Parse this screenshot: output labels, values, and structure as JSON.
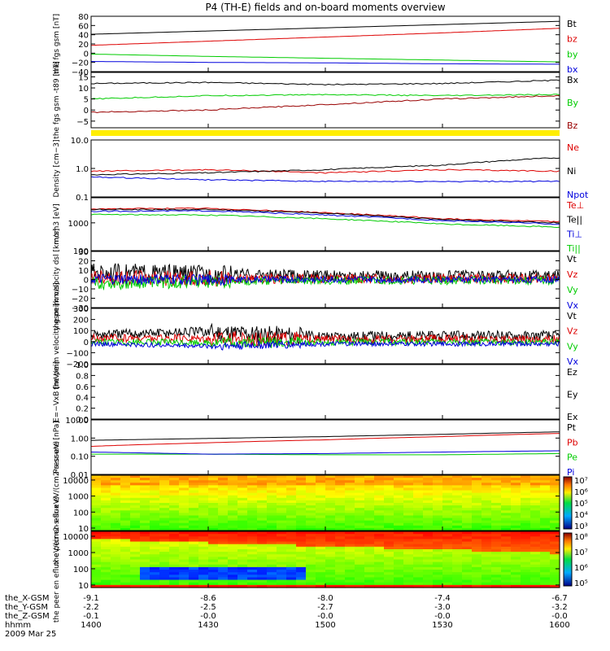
{
  "title": "P4 (TH-E) fields and on-board moments overview",
  "colors": {
    "black": "#000000",
    "red": "#dd0000",
    "green": "#00cc00",
    "blue": "#0000dd",
    "darkred": "#990000",
    "yellow": "#ffee00"
  },
  "bottom_axis": {
    "rows": [
      {
        "label": "the_X-GSM",
        "values": [
          "-9.1",
          "-8.6",
          "-8.0",
          "-7.4",
          "-6.7"
        ]
      },
      {
        "label": "the_Y-GSM",
        "values": [
          "-2.2",
          "-2.5",
          "-2.7",
          "-3.0",
          "-3.2"
        ]
      },
      {
        "label": "the_Z-GSM",
        "values": [
          "-0.1",
          "-0.0",
          "-0.0",
          "-0.0",
          "-0.0"
        ]
      },
      {
        "label": "hhmm",
        "values": [
          "1400",
          "1430",
          "1500",
          "1530",
          "1600"
        ]
      }
    ],
    "date": "2009 Mar 25"
  },
  "chart_data": [
    {
      "type": "line",
      "ylabel": "the fgs gsm [nT]",
      "ylim": [
        -40,
        80
      ],
      "ticks": [
        "80",
        "60",
        "40",
        "20",
        "0",
        "−20",
        "−40"
      ],
      "x": [
        1400,
        1430,
        1500,
        1530,
        1600
      ],
      "series": [
        {
          "name": "Bt",
          "color": "#000000",
          "values": [
            41,
            48,
            55,
            62,
            69
          ]
        },
        {
          "name": "bz",
          "color": "#dd0000",
          "values": [
            17,
            26,
            35,
            44,
            54
          ]
        },
        {
          "name": "by",
          "color": "#00cc00",
          "values": [
            -2,
            -7,
            -11,
            -15,
            -19
          ]
        },
        {
          "name": "bx",
          "color": "#0000dd",
          "values": [
            -18,
            -20,
            -21,
            -23,
            -24
          ]
        }
      ]
    },
    {
      "type": "line",
      "ylabel": "the fgs gsm -t89 [nT]",
      "ylim": [
        -8,
        17
      ],
      "ticks": [
        "15",
        "10",
        "5",
        "0",
        "−5"
      ],
      "x": [
        1400,
        1430,
        1500,
        1530,
        1600
      ],
      "series": [
        {
          "name": "Bx",
          "color": "#000000",
          "values": [
            12,
            12.5,
            11.5,
            12,
            13.5
          ]
        },
        {
          "name": "By",
          "color": "#00cc00",
          "values": [
            5,
            6.5,
            7,
            6.5,
            7
          ]
        },
        {
          "name": "Bz",
          "color": "#990000",
          "values": [
            -1,
            0,
            2.5,
            5,
            6.5
          ]
        }
      ]
    },
    {
      "type": "line",
      "ylabel": "Density [cm−3]",
      "scale": "log",
      "ylim": [
        0.1,
        10
      ],
      "ticks": [
        "10.0",
        "1.0",
        "0.1"
      ],
      "x": [
        1400,
        1430,
        1500,
        1530,
        1600
      ],
      "series": [
        {
          "name": "Ne",
          "color": "#dd0000",
          "values": [
            0.8,
            0.9,
            0.7,
            0.9,
            0.8
          ]
        },
        {
          "name": "Ni",
          "color": "#000000",
          "values": [
            0.6,
            0.7,
            0.9,
            1.3,
            2.4
          ]
        },
        {
          "name": "Npot",
          "color": "#0000dd",
          "values": [
            0.5,
            0.4,
            0.35,
            0.35,
            0.35
          ]
        }
      ]
    },
    {
      "type": "line",
      "ylabel": "mom3 [eV]",
      "scale": "log",
      "ylim": [
        100,
        8000
      ],
      "ticks": [
        "1000",
        "100"
      ],
      "x": [
        1400,
        1430,
        1500,
        1530,
        1600
      ],
      "series": [
        {
          "name": "Te⊥",
          "color": "#dd0000",
          "values": [
            3200,
            3300,
            2300,
            1400,
            1100
          ]
        },
        {
          "name": "Te||",
          "color": "#000000",
          "values": [
            3000,
            3000,
            2200,
            1300,
            1000
          ]
        },
        {
          "name": "Ti⊥",
          "color": "#0000dd",
          "values": [
            2600,
            2700,
            1900,
            1200,
            900
          ]
        },
        {
          "name": "Ti||",
          "color": "#00cc00",
          "values": [
            2000,
            1900,
            1400,
            900,
            700
          ]
        }
      ]
    },
    {
      "type": "line",
      "ylabel": "the peim velocity dsl [km/s]",
      "ylim": [
        -30,
        30
      ],
      "ticks": [
        "30",
        "20",
        "10",
        "0",
        "−10",
        "−20",
        "−30"
      ],
      "x": [
        1400,
        1430,
        1500,
        1530,
        1600
      ],
      "series": [
        {
          "name": "Vt",
          "color": "#000000",
          "values": [
            8,
            6,
            4,
            4,
            4
          ]
        },
        {
          "name": "Vz",
          "color": "#dd0000",
          "values": [
            2,
            1,
            1,
            1,
            1
          ]
        },
        {
          "name": "Vy",
          "color": "#00cc00",
          "values": [
            -4,
            -2,
            -1,
            -1,
            -1
          ]
        },
        {
          "name": "Vx",
          "color": "#0000dd",
          "values": [
            0,
            0,
            0,
            0,
            0
          ]
        }
      ]
    },
    {
      "type": "line",
      "ylabel": "the peim velocity gsm [km/s]",
      "ylim": [
        -200,
        300
      ],
      "ticks": [
        "300",
        "200",
        "100",
        "0",
        "−100",
        "−200"
      ],
      "x": [
        1400,
        1430,
        1500,
        1530,
        1600
      ],
      "series": [
        {
          "name": "Vt",
          "color": "#000000",
          "values": [
            60,
            90,
            50,
            50,
            55
          ]
        },
        {
          "name": "Vz",
          "color": "#dd0000",
          "values": [
            30,
            30,
            20,
            25,
            20
          ]
        },
        {
          "name": "Vy",
          "color": "#00cc00",
          "values": [
            0,
            -10,
            -5,
            -5,
            -5
          ]
        },
        {
          "name": "Vx",
          "color": "#0000dd",
          "values": [
            -20,
            -40,
            -20,
            -20,
            -20
          ]
        }
      ]
    },
    {
      "type": "line",
      "ylabel": "E=−VxB [mV/m]",
      "ylim": [
        0,
        1
      ],
      "ticks": [
        "1.0",
        "0.8",
        "0.6",
        "0.4",
        "0.2",
        "0.0"
      ],
      "x": [],
      "series": [
        {
          "name": "Ez",
          "values": []
        },
        {
          "name": "Ey",
          "values": []
        },
        {
          "name": "Ex",
          "values": []
        }
      ]
    },
    {
      "type": "line",
      "ylabel": "Pressure [nPa]",
      "scale": "log",
      "ylim": [
        0.01,
        10
      ],
      "ticks": [
        "10.00",
        "1.00",
        "0.10",
        "0.01"
      ],
      "x": [
        1400,
        1430,
        1500,
        1530,
        1600
      ],
      "series": [
        {
          "name": "Pt",
          "color": "#000000",
          "values": [
            0.75,
            0.95,
            1.2,
            1.6,
            2.2
          ]
        },
        {
          "name": "Pb",
          "color": "#dd0000",
          "values": [
            0.35,
            0.55,
            0.8,
            1.2,
            1.8
          ]
        },
        {
          "name": "Pe",
          "color": "#00cc00",
          "values": [
            0.13,
            0.13,
            0.12,
            0.12,
            0.14
          ]
        },
        {
          "name": "Pi",
          "color": "#0000dd",
          "values": [
            0.17,
            0.13,
            0.14,
            0.17,
            0.2
          ]
        }
      ]
    },
    {
      "type": "heatmap",
      "ylabel": "the peir en eflux eV/(cm2-s-sr-eV)",
      "scale": "log",
      "ticks": [
        "10000",
        "1000",
        "100",
        "10"
      ],
      "colorbar_ticks": [
        "10⁷",
        "10⁶",
        "10⁵",
        "10⁴",
        "10³"
      ]
    },
    {
      "type": "heatmap",
      "ylabel": "the peer en eflux eV/(cm2-s-sr-eV)",
      "scale": "log",
      "ticks": [
        "10000",
        "1000",
        "100",
        "10"
      ],
      "colorbar_ticks": [
        "10⁸",
        "10⁷",
        "10⁶",
        "10⁵"
      ]
    }
  ]
}
